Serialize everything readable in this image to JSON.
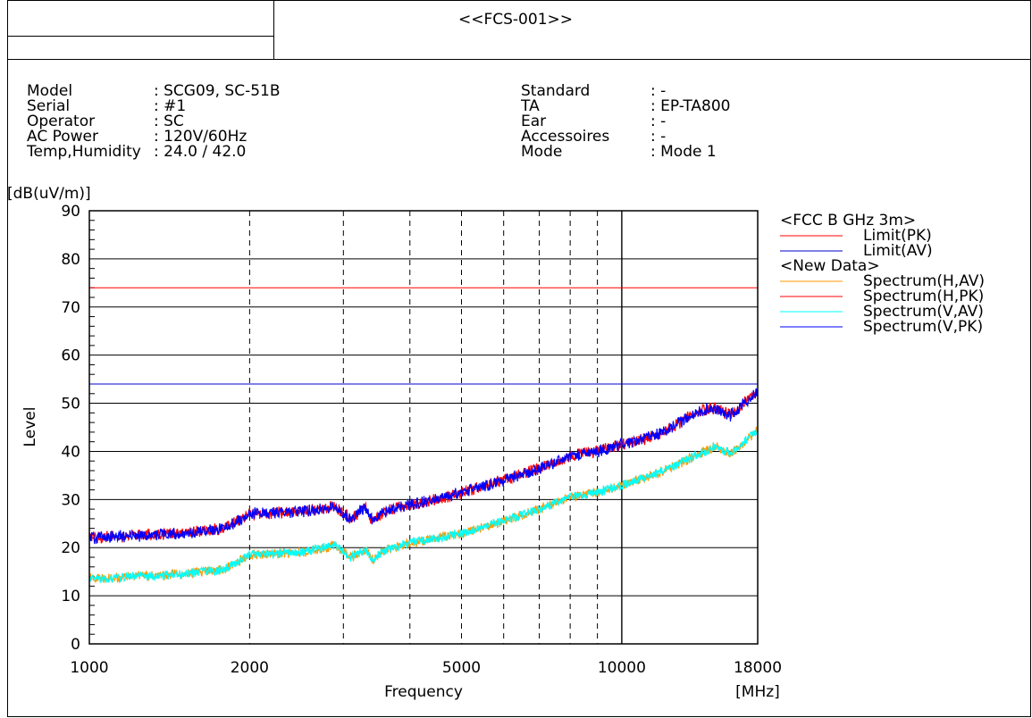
{
  "report_title": "<<FCS-001>>",
  "info_left": [
    {
      "label": "Model",
      "value": ": SCG09, SC-51B"
    },
    {
      "label": "Serial",
      "value": ": #1"
    },
    {
      "label": "Operator",
      "value": ": SC"
    },
    {
      "label": "AC Power",
      "value": ": 120V/60Hz"
    },
    {
      "label": "Temp,Humidity",
      "value": ": 24.0 / 42.0"
    }
  ],
  "info_right": [
    {
      "label": "Standard",
      "value": ": -"
    },
    {
      "label": "TA",
      "value": ": EP-TA800"
    },
    {
      "label": "Ear",
      "value": ": -"
    },
    {
      "label": "Accessoires",
      "value": ": -"
    },
    {
      "label": "Mode",
      "value": ": Mode 1"
    }
  ],
  "colors": {
    "limit_pk": "#ff0000",
    "limit_av": "#0000cc",
    "spectrum_h_av": "#ff9900",
    "spectrum_h_pk": "#ff0000",
    "spectrum_v_av": "#00ffff",
    "spectrum_v_pk": "#0000ff"
  },
  "chart_data": {
    "type": "line",
    "xscale": "log",
    "xlim": [
      1000,
      18000
    ],
    "ylim": [
      0,
      90
    ],
    "xlabel": "Frequency",
    "xunit": "[MHz]",
    "ylabel": "Level",
    "yunit": "[dB(uV/m)]",
    "x_ticks": [
      1000,
      2000,
      5000,
      10000,
      18000
    ],
    "x_tick_labels": [
      "1000",
      "2000",
      "5000",
      "10000",
      "18000"
    ],
    "x_gridlines": [
      2000,
      3000,
      4000,
      5000,
      6000,
      7000,
      8000,
      9000,
      10000
    ],
    "y_ticks": [
      0,
      10,
      20,
      30,
      40,
      50,
      60,
      70,
      80,
      90
    ],
    "grid": true,
    "legend_position": "right",
    "legend_groups": [
      {
        "heading": "<FCC B GHz 3m>",
        "items": [
          "Limit(PK)",
          "Limit(AV)"
        ]
      },
      {
        "heading": "<New Data>",
        "items": [
          "Spectrum(H,AV)",
          "Spectrum(H,PK)",
          "Spectrum(V,AV)",
          "Spectrum(V,PK)"
        ]
      }
    ],
    "limits": [
      {
        "name": "Limit(PK)",
        "value": 74.0
      },
      {
        "name": "Limit(AV)",
        "value": 54.0
      }
    ],
    "series": [
      {
        "name": "Spectrum(H,AV)",
        "x": [
          1000,
          1500,
          1800,
          2000,
          2500,
          2900,
          3100,
          3300,
          3400,
          3600,
          4000,
          4500,
          5000,
          6000,
          7000,
          8000,
          9000,
          10000,
          11000,
          12000,
          14000,
          15000,
          16000,
          18000
        ],
        "y": [
          13.5,
          14.5,
          15.5,
          18.5,
          19,
          20.5,
          18,
          19.5,
          17.5,
          19.5,
          21,
          22,
          23,
          25.5,
          28,
          30.5,
          31.5,
          33,
          34.5,
          36,
          39.5,
          41,
          39.5,
          44.5
        ]
      },
      {
        "name": "Spectrum(H,PK)",
        "x": [
          1000,
          1500,
          1800,
          2000,
          2500,
          2900,
          3100,
          3300,
          3400,
          3600,
          4000,
          4500,
          5000,
          6000,
          7000,
          8000,
          9000,
          10000,
          11000,
          12000,
          14000,
          15000,
          16000,
          18000
        ],
        "y": [
          22,
          23,
          24,
          27,
          27.5,
          28.5,
          26,
          28.5,
          25.5,
          27.5,
          29,
          30,
          31.5,
          34,
          36.5,
          39,
          40,
          41.5,
          42.5,
          44,
          48.5,
          49,
          47.5,
          52.5
        ]
      },
      {
        "name": "Spectrum(V,AV)",
        "x": [
          1000,
          1500,
          1800,
          2000,
          2500,
          2900,
          3100,
          3300,
          3400,
          3600,
          4000,
          4500,
          5000,
          6000,
          7000,
          8000,
          9000,
          10000,
          11000,
          12000,
          14000,
          15000,
          16000,
          18000
        ],
        "y": [
          13.5,
          14.5,
          15.5,
          18.5,
          19,
          20.5,
          18,
          19.5,
          17.5,
          19.5,
          21,
          22,
          23,
          25.5,
          28,
          30.5,
          31.5,
          33,
          34.5,
          36,
          39.5,
          41,
          39.5,
          44.5
        ]
      },
      {
        "name": "Spectrum(V,PK)",
        "x": [
          1000,
          1500,
          1800,
          2000,
          2500,
          2900,
          3100,
          3300,
          3400,
          3600,
          4000,
          4500,
          5000,
          6000,
          7000,
          8000,
          9000,
          10000,
          11000,
          12000,
          14000,
          15000,
          16000,
          18000
        ],
        "y": [
          22,
          23,
          24,
          27,
          27.5,
          28.5,
          26,
          28.5,
          25.5,
          27.5,
          29,
          30,
          31.5,
          34,
          36.5,
          39,
          40,
          41.5,
          42.5,
          44,
          48.5,
          49,
          47.5,
          52.5
        ]
      }
    ]
  }
}
